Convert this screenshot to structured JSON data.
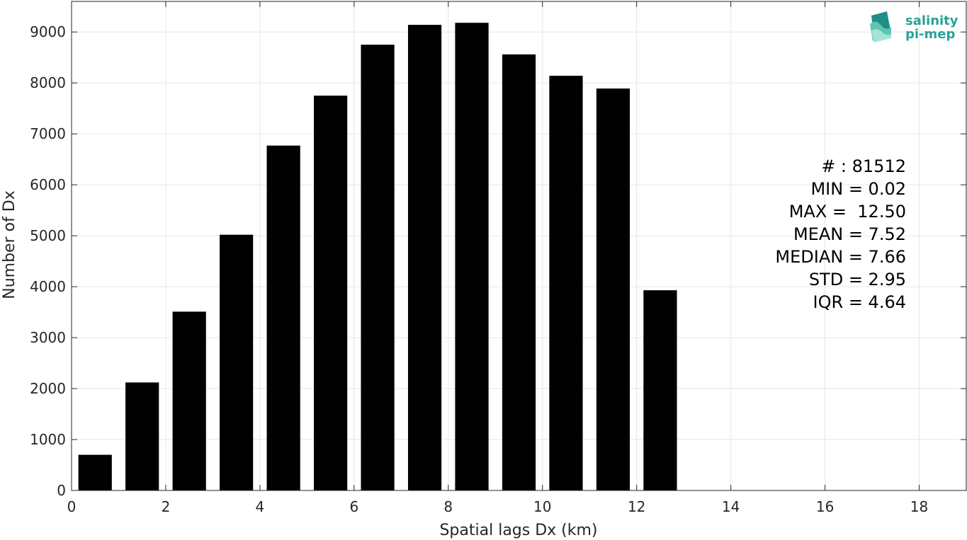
{
  "chart_data": {
    "type": "bar",
    "xlabel": "Spatial lags Dx (km)",
    "ylabel": "Number of Dx",
    "xlim": [
      0,
      19
    ],
    "ylim": [
      0,
      9600
    ],
    "xticks": [
      0,
      2,
      4,
      6,
      8,
      10,
      12,
      14,
      16,
      18
    ],
    "yticks": [
      0,
      1000,
      2000,
      3000,
      4000,
      5000,
      6000,
      7000,
      8000,
      9000
    ],
    "grid": true,
    "bar_color": "#000000",
    "bin_width": 1,
    "bin_centers": [
      0.5,
      1.5,
      2.5,
      3.5,
      4.5,
      5.5,
      6.5,
      7.5,
      8.5,
      9.5,
      10.5,
      11.5,
      12.5
    ],
    "values": [
      700,
      2120,
      3510,
      5020,
      6770,
      7750,
      8750,
      9140,
      9180,
      8560,
      8140,
      7890,
      3930
    ]
  },
  "stats": [
    "# : 81512",
    "MIN = 0.02",
    "MAX =  12.50",
    "MEAN = 7.52",
    "MEDIAN = 7.66",
    "STD = 2.95",
    "IQR = 4.64"
  ],
  "logo": {
    "line1": "salinity",
    "line2": "pi-mep",
    "color": "#2aa198"
  }
}
